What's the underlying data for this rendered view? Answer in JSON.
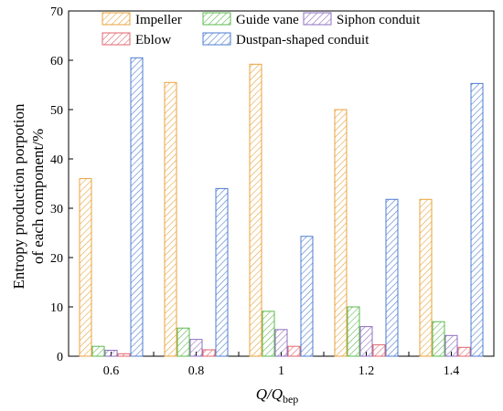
{
  "chart_data": {
    "type": "bar",
    "categories": [
      "0.6",
      "0.8",
      "1",
      "1.2",
      "1.4"
    ],
    "series": [
      {
        "name": "Impeller",
        "color": "#E8A33C",
        "values": [
          36.0,
          55.5,
          59.2,
          50.0,
          31.8
        ]
      },
      {
        "name": "Guide vane",
        "color": "#5DBA4E",
        "values": [
          2.0,
          5.7,
          9.1,
          10.0,
          7.0
        ]
      },
      {
        "name": "Siphon conduit",
        "color": "#8E6FC0",
        "values": [
          1.2,
          3.4,
          5.4,
          6.0,
          4.2
        ]
      },
      {
        "name": "Eblow",
        "color": "#E0666C",
        "values": [
          0.5,
          1.3,
          2.0,
          2.3,
          1.8
        ]
      },
      {
        "name": "Dustpan-shaped conduit",
        "color": "#4E7DD1",
        "values": [
          60.5,
          34.0,
          24.3,
          31.8,
          55.3
        ]
      }
    ],
    "ylim": [
      0,
      70
    ],
    "yticks": [
      "0",
      "10",
      "20",
      "30",
      "40",
      "50",
      "60",
      "70"
    ],
    "ylabel_line1": "Entropy production porpotion",
    "ylabel_line2": "of each component/%",
    "xlabel_main": "Q/Q",
    "xlabel_sub": "bep",
    "legend_position": "top"
  }
}
